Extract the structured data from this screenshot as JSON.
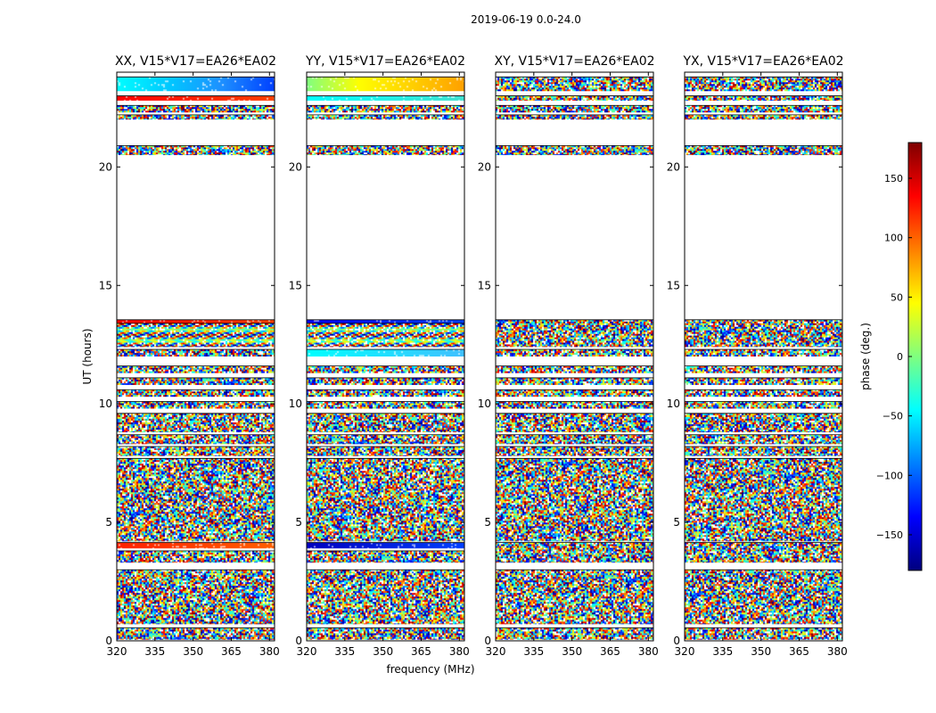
{
  "chart_data": {
    "type": "heatmap",
    "suptitle": "2019-06-19 0.0-24.0",
    "xlabel": "frequency (MHz)",
    "ylabel": "UT (hours)",
    "xlim": [
      320,
      382
    ],
    "ylim": [
      0,
      24
    ],
    "xticks": [
      "320",
      "335",
      "350",
      "365",
      "380"
    ],
    "yticks": [
      "0",
      "5",
      "10",
      "15",
      "20"
    ],
    "panels": [
      {
        "title": "XX, V15*V17=EA26*EA02",
        "pol": "XX",
        "bands": [
          {
            "y0": 23.2,
            "y1": 23.8,
            "kind": "smooth",
            "colors": [
              "#00ffff",
              "#00c8ff",
              "#1e90ff",
              "#0040ff"
            ]
          },
          {
            "y0": 22.8,
            "y1": 23.0,
            "kind": "smooth",
            "colors": [
              "#ff0000",
              "#ff4000"
            ]
          },
          {
            "y0": 22.3,
            "y1": 22.6,
            "kind": "noise"
          },
          {
            "y0": 22.0,
            "y1": 22.2,
            "kind": "noise"
          },
          {
            "y0": 20.5,
            "y1": 20.9,
            "kind": "noise"
          },
          {
            "y0": 13.4,
            "y1": 13.55,
            "kind": "smooth",
            "colors": [
              "#ff0000",
              "#ff4000"
            ]
          },
          {
            "y0": 12.4,
            "y1": 13.4,
            "kind": "stripe"
          },
          {
            "y0": 12.0,
            "y1": 12.3,
            "kind": "noise"
          },
          {
            "y0": 11.3,
            "y1": 11.6,
            "kind": "noise"
          },
          {
            "y0": 10.8,
            "y1": 11.1,
            "kind": "noise"
          },
          {
            "y0": 10.3,
            "y1": 10.6,
            "kind": "noise"
          },
          {
            "y0": 9.8,
            "y1": 10.1,
            "kind": "noise"
          },
          {
            "y0": 8.8,
            "y1": 9.6,
            "kind": "noise"
          },
          {
            "y0": 8.3,
            "y1": 8.7,
            "kind": "noise"
          },
          {
            "y0": 7.8,
            "y1": 8.2,
            "kind": "noise"
          },
          {
            "y0": 4.2,
            "y1": 7.7,
            "kind": "noise"
          },
          {
            "y0": 3.9,
            "y1": 4.15,
            "kind": "smooth",
            "colors": [
              "#ff2000",
              "#ff6000"
            ]
          },
          {
            "y0": 3.3,
            "y1": 3.8,
            "kind": "noise"
          },
          {
            "y0": 0.7,
            "y1": 3.0,
            "kind": "noise"
          },
          {
            "y0": 0.05,
            "y1": 0.55,
            "kind": "noise"
          }
        ]
      },
      {
        "title": "YY, V15*V17=EA26*EA02",
        "pol": "YY",
        "bands": [
          {
            "y0": 23.2,
            "y1": 23.8,
            "kind": "smooth",
            "colors": [
              "#80ff80",
              "#ffff00",
              "#ffd000",
              "#ffa000"
            ]
          },
          {
            "y0": 22.8,
            "y1": 23.0,
            "kind": "smooth",
            "colors": [
              "#00ffff",
              "#40e0d0"
            ]
          },
          {
            "y0": 22.3,
            "y1": 22.6,
            "kind": "noise"
          },
          {
            "y0": 22.0,
            "y1": 22.2,
            "kind": "noise"
          },
          {
            "y0": 20.5,
            "y1": 20.9,
            "kind": "noise"
          },
          {
            "y0": 13.4,
            "y1": 13.55,
            "kind": "smooth",
            "colors": [
              "#0000ff",
              "#0040ff"
            ]
          },
          {
            "y0": 12.4,
            "y1": 13.4,
            "kind": "stripe"
          },
          {
            "y0": 12.0,
            "y1": 12.3,
            "kind": "smooth",
            "colors": [
              "#00ffff",
              "#40c0ff"
            ]
          },
          {
            "y0": 11.3,
            "y1": 11.6,
            "kind": "noise"
          },
          {
            "y0": 10.8,
            "y1": 11.1,
            "kind": "noise"
          },
          {
            "y0": 10.3,
            "y1": 10.6,
            "kind": "noise"
          },
          {
            "y0": 9.8,
            "y1": 10.1,
            "kind": "noise"
          },
          {
            "y0": 8.8,
            "y1": 9.6,
            "kind": "noise"
          },
          {
            "y0": 8.3,
            "y1": 8.7,
            "kind": "noise"
          },
          {
            "y0": 7.8,
            "y1": 8.2,
            "kind": "noise"
          },
          {
            "y0": 4.2,
            "y1": 7.7,
            "kind": "noise"
          },
          {
            "y0": 3.9,
            "y1": 4.15,
            "kind": "smooth",
            "colors": [
              "#0000c0",
              "#0040ff"
            ]
          },
          {
            "y0": 3.3,
            "y1": 3.8,
            "kind": "noise"
          },
          {
            "y0": 0.7,
            "y1": 3.0,
            "kind": "noise"
          },
          {
            "y0": 0.05,
            "y1": 0.55,
            "kind": "noise"
          }
        ]
      },
      {
        "title": "XY, V15*V17=EA26*EA02",
        "pol": "XY",
        "bands": [
          {
            "y0": 23.2,
            "y1": 23.8,
            "kind": "noise"
          },
          {
            "y0": 22.8,
            "y1": 23.0,
            "kind": "noise"
          },
          {
            "y0": 22.3,
            "y1": 22.6,
            "kind": "noise"
          },
          {
            "y0": 22.0,
            "y1": 22.2,
            "kind": "noise"
          },
          {
            "y0": 20.5,
            "y1": 20.9,
            "kind": "noise"
          },
          {
            "y0": 12.4,
            "y1": 13.55,
            "kind": "noise"
          },
          {
            "y0": 12.0,
            "y1": 12.3,
            "kind": "noise"
          },
          {
            "y0": 11.3,
            "y1": 11.6,
            "kind": "noise"
          },
          {
            "y0": 10.8,
            "y1": 11.1,
            "kind": "noise"
          },
          {
            "y0": 10.3,
            "y1": 10.6,
            "kind": "noise"
          },
          {
            "y0": 9.8,
            "y1": 10.1,
            "kind": "noise"
          },
          {
            "y0": 8.8,
            "y1": 9.6,
            "kind": "noise"
          },
          {
            "y0": 8.3,
            "y1": 8.7,
            "kind": "noise"
          },
          {
            "y0": 7.8,
            "y1": 8.2,
            "kind": "noise"
          },
          {
            "y0": 4.2,
            "y1": 7.7,
            "kind": "noise"
          },
          {
            "y0": 3.3,
            "y1": 4.15,
            "kind": "noise"
          },
          {
            "y0": 0.7,
            "y1": 3.0,
            "kind": "noise"
          },
          {
            "y0": 0.05,
            "y1": 0.55,
            "kind": "noise"
          }
        ]
      },
      {
        "title": "YX, V15*V17=EA26*EA02",
        "pol": "YX",
        "bands": [
          {
            "y0": 23.2,
            "y1": 23.8,
            "kind": "noise"
          },
          {
            "y0": 22.8,
            "y1": 23.0,
            "kind": "noise"
          },
          {
            "y0": 22.3,
            "y1": 22.6,
            "kind": "noise"
          },
          {
            "y0": 22.0,
            "y1": 22.2,
            "kind": "noise"
          },
          {
            "y0": 20.5,
            "y1": 20.9,
            "kind": "noise"
          },
          {
            "y0": 12.4,
            "y1": 13.55,
            "kind": "noise"
          },
          {
            "y0": 12.0,
            "y1": 12.3,
            "kind": "noise"
          },
          {
            "y0": 11.3,
            "y1": 11.6,
            "kind": "noise"
          },
          {
            "y0": 10.8,
            "y1": 11.1,
            "kind": "noise"
          },
          {
            "y0": 10.3,
            "y1": 10.6,
            "kind": "noise"
          },
          {
            "y0": 9.8,
            "y1": 10.1,
            "kind": "noise"
          },
          {
            "y0": 8.8,
            "y1": 9.6,
            "kind": "noise"
          },
          {
            "y0": 8.3,
            "y1": 8.7,
            "kind": "noise"
          },
          {
            "y0": 7.8,
            "y1": 8.2,
            "kind": "noise"
          },
          {
            "y0": 4.2,
            "y1": 7.7,
            "kind": "noise"
          },
          {
            "y0": 3.3,
            "y1": 4.15,
            "kind": "noise"
          },
          {
            "y0": 0.7,
            "y1": 3.0,
            "kind": "noise"
          },
          {
            "y0": 0.05,
            "y1": 0.55,
            "kind": "noise"
          }
        ]
      }
    ],
    "colorbar": {
      "label": "phase (deg.)",
      "range": [
        -180,
        180
      ],
      "ticks": [
        "150",
        "100",
        "50",
        "0",
        "−50",
        "−100",
        "−150"
      ],
      "tick_values": [
        150,
        100,
        50,
        0,
        -50,
        -100,
        -150
      ],
      "colormap": "jet",
      "colormap_stops": [
        "#00007f",
        "#0000ff",
        "#007fff",
        "#00ffff",
        "#7fff7f",
        "#ffff00",
        "#ff7f00",
        "#ff0000",
        "#7f0000"
      ]
    }
  }
}
